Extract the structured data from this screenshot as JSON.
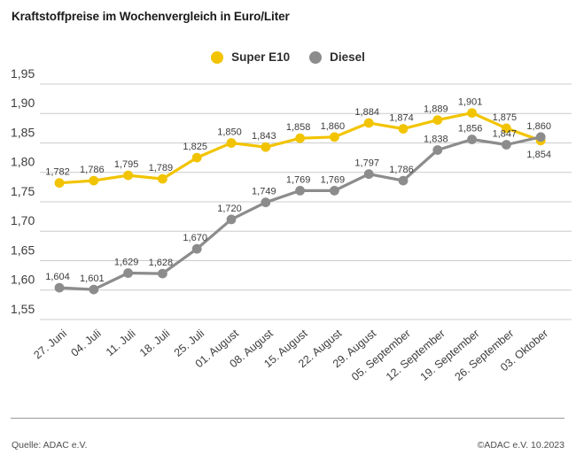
{
  "title": "Kraftstoffpreise im Wochenvergleich in Euro/Liter",
  "legend": [
    {
      "label": "Super E10",
      "color": "#F2C400"
    },
    {
      "label": "Diesel",
      "color": "#8C8C8C"
    }
  ],
  "footer": {
    "source": "Quelle: ADAC e.V.",
    "copyright": "©ADAC e.V. 10.2023"
  },
  "chart_data": {
    "type": "line",
    "title": "Kraftstoffpreise im Wochenvergleich in Euro/Liter",
    "xlabel": "",
    "ylabel": "Euro/Liter",
    "ylim": [
      1.55,
      1.95
    ],
    "ytick_step": 0.05,
    "ytick_labels": [
      "1,55",
      "1,60",
      "1,65",
      "1,70",
      "1,75",
      "1,80",
      "1,85",
      "1,90",
      "1,95"
    ],
    "grid": "horizontal",
    "legend_position": "top-center",
    "categories": [
      "27. Juni",
      "04. Juli",
      "11. Juli",
      "18. Juli",
      "25. Juli",
      "01. August",
      "08. August",
      "15. August",
      "22. August",
      "29. August",
      "05. September",
      "12. September",
      "19. September",
      "26. September",
      "03. Oktober"
    ],
    "series": [
      {
        "name": "Super E10",
        "color": "#F2C400",
        "values": [
          1.782,
          1.786,
          1.795,
          1.789,
          1.825,
          1.85,
          1.843,
          1.858,
          1.86,
          1.884,
          1.874,
          1.889,
          1.901,
          1.875,
          1.854
        ],
        "labels": [
          "1,782",
          "1,786",
          "1,795",
          "1,789",
          "1,825",
          "1,850",
          "1,843",
          "1,858",
          "1,860",
          "1,884",
          "1,874",
          "1,889",
          "1,901",
          "1,875",
          "1,854"
        ],
        "label_below_indices": [
          14
        ]
      },
      {
        "name": "Diesel",
        "color": "#8C8C8C",
        "values": [
          1.604,
          1.601,
          1.629,
          1.628,
          1.67,
          1.72,
          1.749,
          1.769,
          1.769,
          1.797,
          1.786,
          1.838,
          1.856,
          1.847,
          1.86
        ],
        "labels": [
          "1,604",
          "1,601",
          "1,629",
          "1,628",
          "1,670",
          "1,720",
          "1,749",
          "1,769",
          "1,769",
          "1,797",
          "1,786",
          "1,838",
          "1,856",
          "1,847",
          "1,860"
        ],
        "label_below_indices": []
      }
    ]
  }
}
